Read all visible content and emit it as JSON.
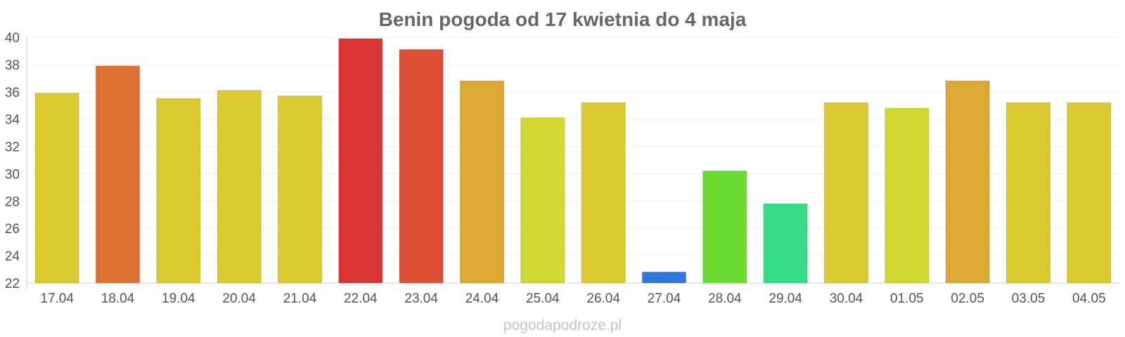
{
  "chart_data": {
    "type": "bar",
    "title": "Benin pogoda od 17 kwietnia do 4 maja",
    "categories": [
      "17.04",
      "18.04",
      "19.04",
      "20.04",
      "21.04",
      "22.04",
      "23.04",
      "24.04",
      "25.04",
      "26.04",
      "27.04",
      "28.04",
      "29.04",
      "30.04",
      "01.05",
      "02.05",
      "03.05",
      "04.05"
    ],
    "values": [
      35.9,
      37.9,
      35.5,
      36.1,
      35.7,
      39.9,
      39.1,
      36.8,
      34.1,
      35.2,
      22.8,
      30.2,
      27.8,
      35.2,
      34.8,
      36.8,
      35.2,
      35.2
    ],
    "colors": [
      "#dbc932",
      "#df6e33",
      "#dbc932",
      "#dbc932",
      "#dbc932",
      "#d93333",
      "#dd5033",
      "#dca833",
      "#cfd932",
      "#dbc932",
      "#3377dd",
      "#6adc35",
      "#35dc87",
      "#dbc932",
      "#cfd932",
      "#dca833",
      "#dbc932",
      "#dbc932"
    ],
    "ylim": [
      22,
      40
    ],
    "yticks": [
      22,
      24,
      26,
      28,
      30,
      32,
      34,
      36,
      38,
      40
    ],
    "xlabel": "",
    "ylabel": "",
    "grid": true,
    "legend": "none"
  },
  "watermark": "pogodapodroze.pl"
}
